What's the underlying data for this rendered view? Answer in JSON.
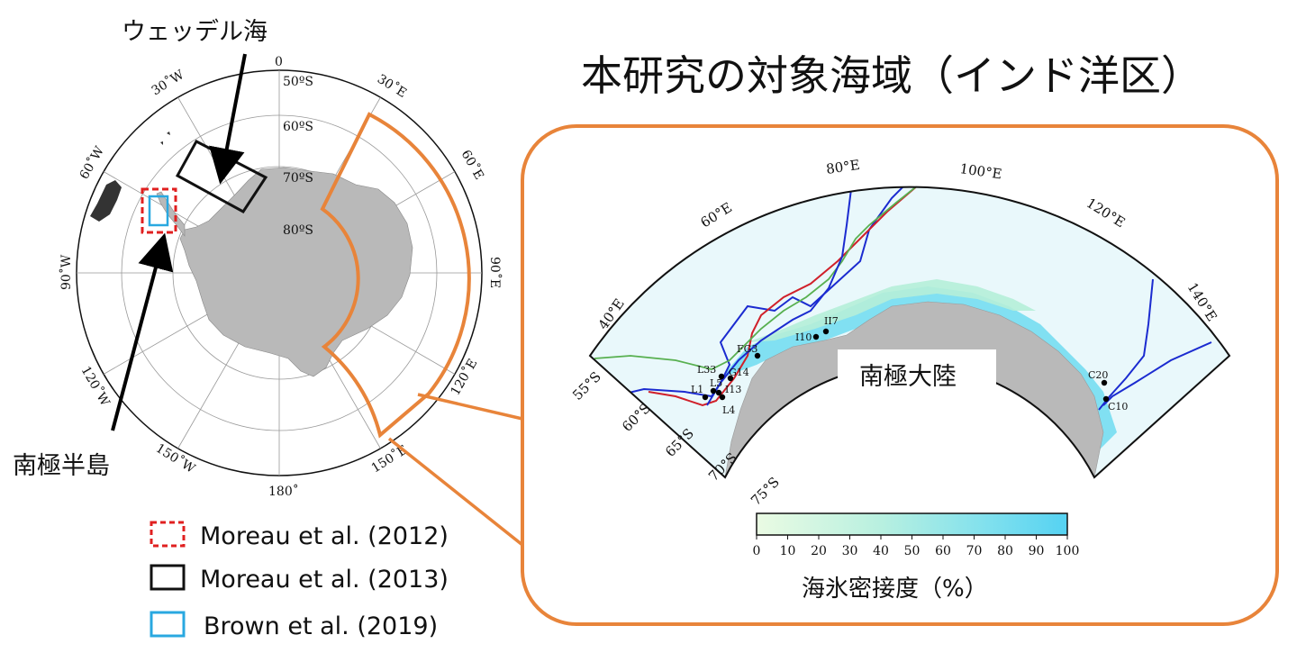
{
  "title": "本研究の対象海域（インド洋区）",
  "labels": {
    "weddell": "ウェッデル海",
    "peninsula": "南極半島",
    "continent": "南極大陸",
    "colorbar_label": "海氷密接度（%）"
  },
  "legend": [
    {
      "text": "Moreau et al. (2012)",
      "color": "#e02020",
      "style": "dashed"
    },
    {
      "text": "Moreau et al. (2013)",
      "color": "#111111",
      "style": "solid"
    },
    {
      "text": "Brown et al. (2019)",
      "color": "#29a8e0",
      "style": "solid"
    }
  ],
  "polar_map": {
    "lat_labels": [
      "50ºS",
      "60ºS",
      "70ºS",
      "80ºS"
    ],
    "lon_labels": {
      "top": "0",
      "w30": "30˚W",
      "w60": "60˚W",
      "w90": "90˚W",
      "w120": "120˚W",
      "w150": "150˚W",
      "bottom": "180˚",
      "e150": "150˚E",
      "e120": "120˚E",
      "e90": "90˚E",
      "e60": "60˚E",
      "e30": "30˚E"
    }
  },
  "inset_map": {
    "lon_labels": [
      "40°E",
      "60°E",
      "80°E",
      "100°E",
      "120°E",
      "140°E"
    ],
    "lat_labels": [
      "55°S",
      "60°S",
      "65°S",
      "70°S",
      "75°S"
    ],
    "stations": [
      "II7",
      "I10",
      "FG3",
      "L33",
      "G14",
      "L1",
      "L5",
      "I13",
      "L4",
      "C20",
      "C10"
    ],
    "colorbar": {
      "ticks": [
        "0",
        "10",
        "20",
        "30",
        "40",
        "50",
        "60",
        "70",
        "80",
        "90",
        "100"
      ],
      "colors": [
        "#e6f9e1",
        "#5fd9f0"
      ]
    }
  },
  "colors": {
    "accent": "#e8843a",
    "land": "#b9b9b9",
    "ice_water": "#e9f8fb"
  }
}
